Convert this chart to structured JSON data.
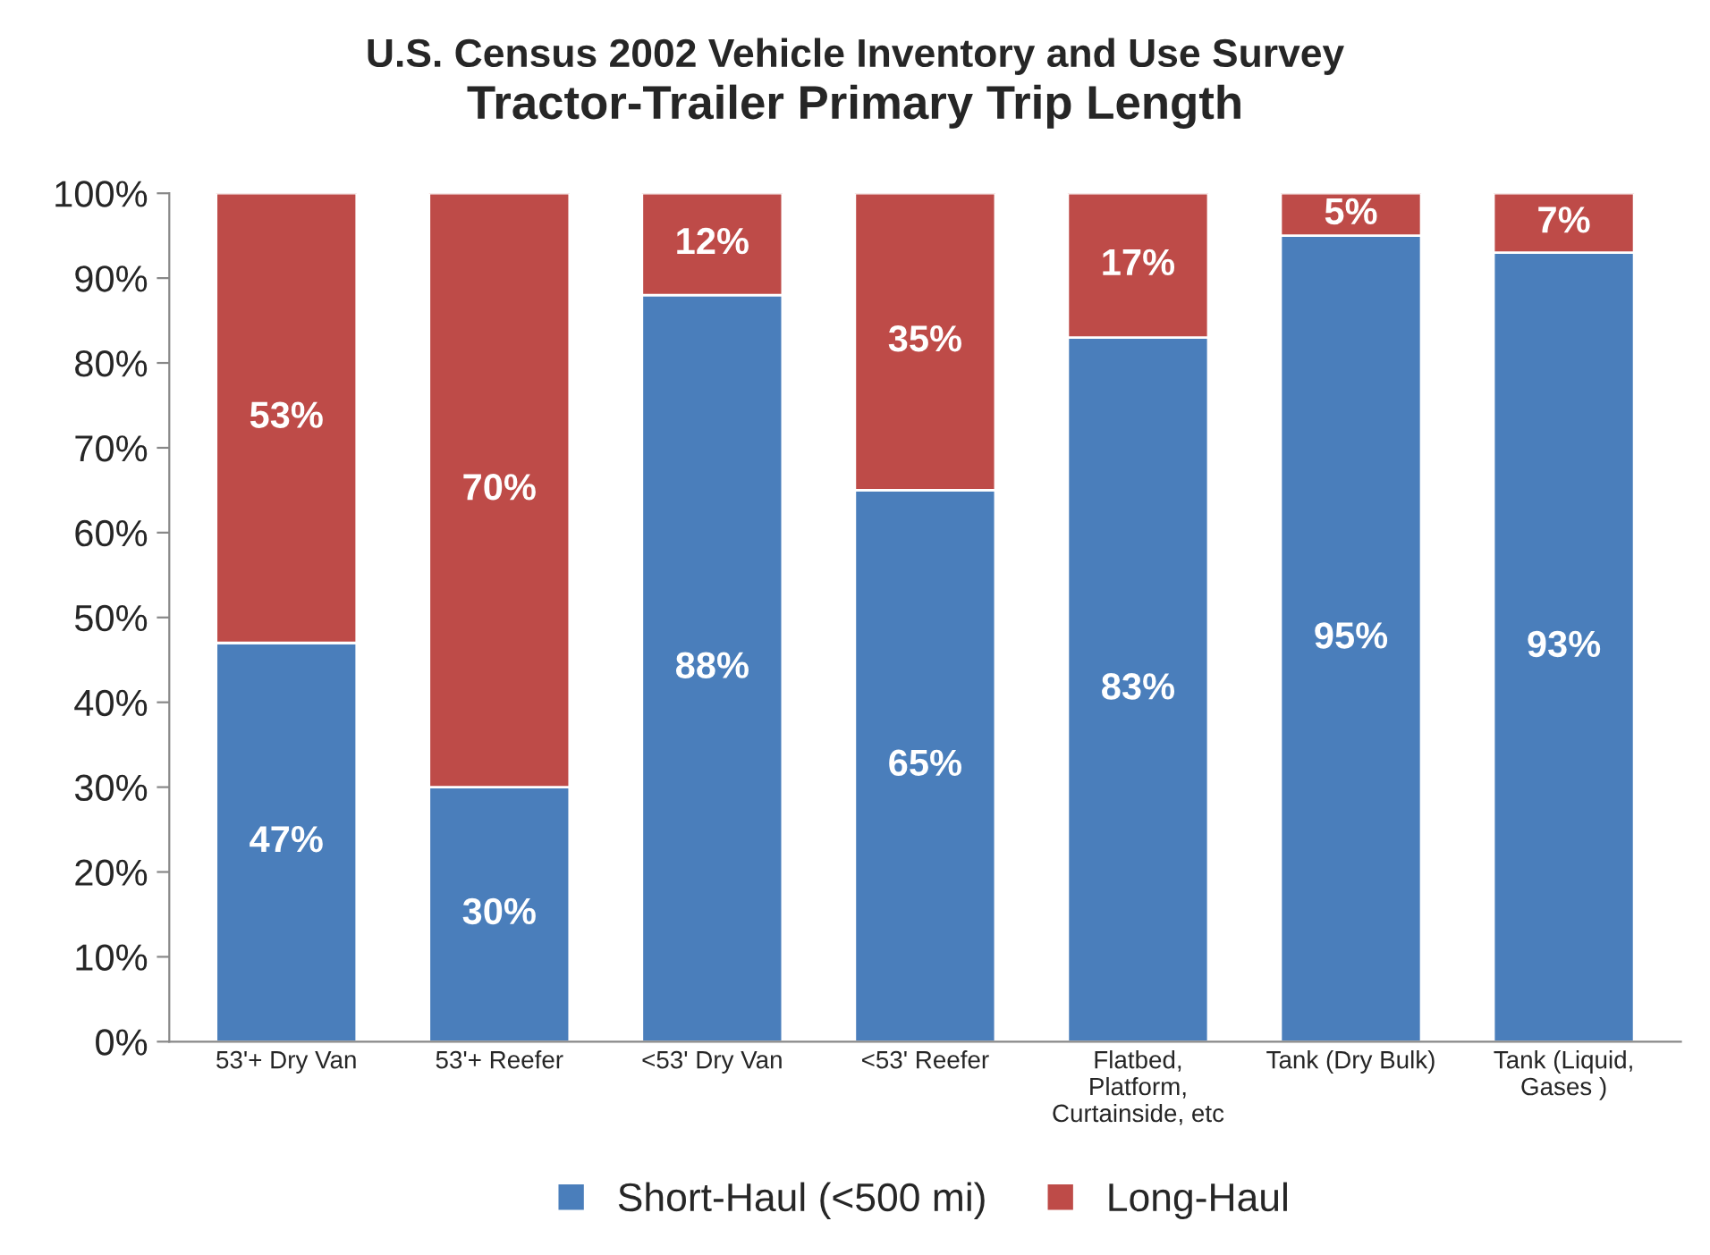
{
  "chart_data": {
    "type": "bar",
    "stacked": true,
    "title": "U.S. Census 2002 Vehicle Inventory and Use Survey",
    "subtitle": "Tractor-Trailer Primary Trip Length",
    "categories": [
      "53'+ Dry Van",
      "53'+ Reefer",
      "<53' Dry Van",
      "<53' Reefer",
      "Flatbed,\nPlatform,\nCurtainside, etc",
      "Tank (Dry Bulk)",
      "Tank (Liquid,\nGases )"
    ],
    "series": [
      {
        "name": "Short-Haul (<500 mi)",
        "color": "#4a7ebb",
        "values": [
          47,
          30,
          88,
          65,
          83,
          95,
          93
        ],
        "value_labels": [
          "47%",
          "30%",
          "88%",
          "65%",
          "83%",
          "95%",
          "93%"
        ]
      },
      {
        "name": "Long-Haul",
        "color": "#be4b48",
        "values": [
          53,
          70,
          12,
          35,
          17,
          5,
          7
        ],
        "value_labels": [
          "53%",
          "70%",
          "12%",
          "35%",
          "17%",
          "5%",
          "7%"
        ]
      }
    ],
    "ylim": [
      0,
      100
    ],
    "yticks": [
      {
        "value": 0,
        "label": "0%"
      },
      {
        "value": 10,
        "label": "10%"
      },
      {
        "value": 20,
        "label": "20%"
      },
      {
        "value": 30,
        "label": "30%"
      },
      {
        "value": 40,
        "label": "40%"
      },
      {
        "value": 50,
        "label": "50%"
      },
      {
        "value": 60,
        "label": "60%"
      },
      {
        "value": 70,
        "label": "70%"
      },
      {
        "value": 80,
        "label": "80%"
      },
      {
        "value": 90,
        "label": "90%"
      },
      {
        "value": 100,
        "label": "100%"
      }
    ],
    "grid": false,
    "legend": "bottom"
  }
}
